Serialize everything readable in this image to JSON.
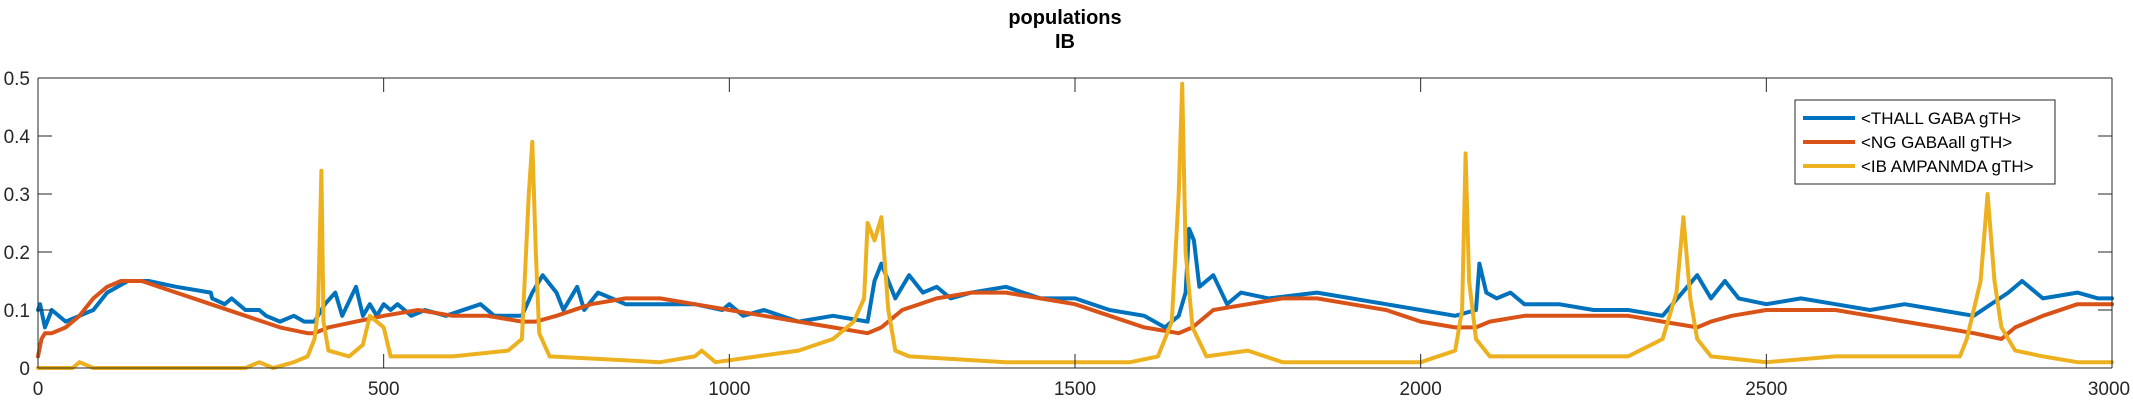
{
  "chart_data": {
    "type": "line",
    "title_lines": [
      "populations",
      "IB"
    ],
    "xlabel": "",
    "ylabel": "",
    "xlim": [
      0,
      3000
    ],
    "ylim": [
      0,
      0.5
    ],
    "x_ticks": [
      0,
      500,
      1000,
      1500,
      2000,
      2500,
      3000
    ],
    "x_tick_labels": [
      "0",
      "500",
      "1000",
      "1500",
      "2000",
      "2500",
      "3000"
    ],
    "y_ticks": [
      0,
      0.1,
      0.2,
      0.3,
      0.4,
      0.5
    ],
    "y_tick_labels": [
      "0",
      "0.1",
      "0.2",
      "0.3",
      "0.4",
      "0.5"
    ],
    "grid": false,
    "legend_position": "top-right",
    "series": [
      {
        "name": "<THALL GABA gTH>",
        "color": "#0072BD",
        "points": [
          [
            0,
            0.1
          ],
          [
            3,
            0.11
          ],
          [
            10,
            0.07
          ],
          [
            20,
            0.1
          ],
          [
            40,
            0.08
          ],
          [
            60,
            0.09
          ],
          [
            80,
            0.1
          ],
          [
            100,
            0.13
          ],
          [
            130,
            0.15
          ],
          [
            160,
            0.15
          ],
          [
            200,
            0.14
          ],
          [
            250,
            0.13
          ],
          [
            252,
            0.12
          ],
          [
            270,
            0.11
          ],
          [
            280,
            0.12
          ],
          [
            300,
            0.1
          ],
          [
            320,
            0.1
          ],
          [
            330,
            0.09
          ],
          [
            350,
            0.08
          ],
          [
            370,
            0.09
          ],
          [
            385,
            0.08
          ],
          [
            400,
            0.08
          ],
          [
            415,
            0.11
          ],
          [
            430,
            0.13
          ],
          [
            440,
            0.09
          ],
          [
            460,
            0.14
          ],
          [
            470,
            0.09
          ],
          [
            480,
            0.11
          ],
          [
            490,
            0.09
          ],
          [
            500,
            0.11
          ],
          [
            510,
            0.1
          ],
          [
            520,
            0.11
          ],
          [
            540,
            0.09
          ],
          [
            560,
            0.1
          ],
          [
            590,
            0.09
          ],
          [
            640,
            0.11
          ],
          [
            660,
            0.09
          ],
          [
            700,
            0.09
          ],
          [
            715,
            0.13
          ],
          [
            730,
            0.16
          ],
          [
            750,
            0.13
          ],
          [
            760,
            0.1
          ],
          [
            780,
            0.14
          ],
          [
            790,
            0.1
          ],
          [
            810,
            0.13
          ],
          [
            830,
            0.12
          ],
          [
            850,
            0.11
          ],
          [
            900,
            0.11
          ],
          [
            950,
            0.11
          ],
          [
            990,
            0.1
          ],
          [
            1000,
            0.11
          ],
          [
            1020,
            0.09
          ],
          [
            1050,
            0.1
          ],
          [
            1100,
            0.08
          ],
          [
            1150,
            0.09
          ],
          [
            1200,
            0.08
          ],
          [
            1210,
            0.15
          ],
          [
            1220,
            0.18
          ],
          [
            1240,
            0.12
          ],
          [
            1260,
            0.16
          ],
          [
            1280,
            0.13
          ],
          [
            1300,
            0.14
          ],
          [
            1320,
            0.12
          ],
          [
            1350,
            0.13
          ],
          [
            1400,
            0.14
          ],
          [
            1450,
            0.12
          ],
          [
            1500,
            0.12
          ],
          [
            1550,
            0.1
          ],
          [
            1600,
            0.09
          ],
          [
            1630,
            0.07
          ],
          [
            1650,
            0.09
          ],
          [
            1660,
            0.13
          ],
          [
            1665,
            0.24
          ],
          [
            1672,
            0.22
          ],
          [
            1680,
            0.14
          ],
          [
            1700,
            0.16
          ],
          [
            1720,
            0.11
          ],
          [
            1740,
            0.13
          ],
          [
            1780,
            0.12
          ],
          [
            1850,
            0.13
          ],
          [
            1900,
            0.12
          ],
          [
            1950,
            0.11
          ],
          [
            2000,
            0.1
          ],
          [
            2050,
            0.09
          ],
          [
            2080,
            0.1
          ],
          [
            2085,
            0.18
          ],
          [
            2095,
            0.13
          ],
          [
            2110,
            0.12
          ],
          [
            2130,
            0.13
          ],
          [
            2150,
            0.11
          ],
          [
            2200,
            0.11
          ],
          [
            2250,
            0.1
          ],
          [
            2300,
            0.1
          ],
          [
            2350,
            0.09
          ],
          [
            2400,
            0.16
          ],
          [
            2420,
            0.12
          ],
          [
            2440,
            0.15
          ],
          [
            2460,
            0.12
          ],
          [
            2500,
            0.11
          ],
          [
            2550,
            0.12
          ],
          [
            2600,
            0.11
          ],
          [
            2650,
            0.1
          ],
          [
            2700,
            0.11
          ],
          [
            2750,
            0.1
          ],
          [
            2800,
            0.09
          ],
          [
            2850,
            0.13
          ],
          [
            2870,
            0.15
          ],
          [
            2900,
            0.12
          ],
          [
            2950,
            0.13
          ],
          [
            2980,
            0.12
          ],
          [
            3000,
            0.12
          ]
        ]
      },
      {
        "name": "<NG GABAall gTH>",
        "color": "#D95319",
        "points": [
          [
            0,
            0.02
          ],
          [
            5,
            0.05
          ],
          [
            10,
            0.06
          ],
          [
            20,
            0.06
          ],
          [
            40,
            0.07
          ],
          [
            60,
            0.09
          ],
          [
            80,
            0.12
          ],
          [
            100,
            0.14
          ],
          [
            120,
            0.15
          ],
          [
            150,
            0.15
          ],
          [
            200,
            0.13
          ],
          [
            250,
            0.11
          ],
          [
            300,
            0.09
          ],
          [
            350,
            0.07
          ],
          [
            390,
            0.06
          ],
          [
            400,
            0.06
          ],
          [
            420,
            0.07
          ],
          [
            460,
            0.08
          ],
          [
            500,
            0.09
          ],
          [
            550,
            0.1
          ],
          [
            600,
            0.09
          ],
          [
            650,
            0.09
          ],
          [
            700,
            0.08
          ],
          [
            720,
            0.08
          ],
          [
            750,
            0.09
          ],
          [
            800,
            0.11
          ],
          [
            850,
            0.12
          ],
          [
            900,
            0.12
          ],
          [
            950,
            0.11
          ],
          [
            1000,
            0.1
          ],
          [
            1050,
            0.09
          ],
          [
            1100,
            0.08
          ],
          [
            1150,
            0.07
          ],
          [
            1200,
            0.06
          ],
          [
            1220,
            0.07
          ],
          [
            1250,
            0.1
          ],
          [
            1300,
            0.12
          ],
          [
            1350,
            0.13
          ],
          [
            1400,
            0.13
          ],
          [
            1450,
            0.12
          ],
          [
            1500,
            0.11
          ],
          [
            1550,
            0.09
          ],
          [
            1600,
            0.07
          ],
          [
            1650,
            0.06
          ],
          [
            1670,
            0.07
          ],
          [
            1700,
            0.1
          ],
          [
            1750,
            0.11
          ],
          [
            1800,
            0.12
          ],
          [
            1850,
            0.12
          ],
          [
            1900,
            0.11
          ],
          [
            1950,
            0.1
          ],
          [
            2000,
            0.08
          ],
          [
            2050,
            0.07
          ],
          [
            2080,
            0.07
          ],
          [
            2100,
            0.08
          ],
          [
            2150,
            0.09
          ],
          [
            2200,
            0.09
          ],
          [
            2250,
            0.09
          ],
          [
            2300,
            0.09
          ],
          [
            2350,
            0.08
          ],
          [
            2400,
            0.07
          ],
          [
            2420,
            0.08
          ],
          [
            2450,
            0.09
          ],
          [
            2500,
            0.1
          ],
          [
            2550,
            0.1
          ],
          [
            2600,
            0.1
          ],
          [
            2650,
            0.09
          ],
          [
            2700,
            0.08
          ],
          [
            2750,
            0.07
          ],
          [
            2800,
            0.06
          ],
          [
            2840,
            0.05
          ],
          [
            2860,
            0.07
          ],
          [
            2900,
            0.09
          ],
          [
            2950,
            0.11
          ],
          [
            3000,
            0.11
          ]
        ]
      },
      {
        "name": "<IB AMPANMDA gTH>",
        "color": "#EDB120",
        "points": [
          [
            0,
            0
          ],
          [
            50,
            0
          ],
          [
            60,
            0.01
          ],
          [
            80,
            0
          ],
          [
            300,
            0
          ],
          [
            320,
            0.01
          ],
          [
            340,
            0
          ],
          [
            370,
            0.01
          ],
          [
            390,
            0.02
          ],
          [
            400,
            0.05
          ],
          [
            405,
            0.1
          ],
          [
            410,
            0.34
          ],
          [
            413,
            0.08
          ],
          [
            420,
            0.03
          ],
          [
            450,
            0.02
          ],
          [
            470,
            0.04
          ],
          [
            480,
            0.09
          ],
          [
            500,
            0.07
          ],
          [
            510,
            0.02
          ],
          [
            600,
            0.02
          ],
          [
            680,
            0.03
          ],
          [
            700,
            0.05
          ],
          [
            710,
            0.3
          ],
          [
            715,
            0.39
          ],
          [
            720,
            0.2
          ],
          [
            725,
            0.06
          ],
          [
            740,
            0.02
          ],
          [
            900,
            0.01
          ],
          [
            950,
            0.02
          ],
          [
            960,
            0.03
          ],
          [
            980,
            0.01
          ],
          [
            1100,
            0.03
          ],
          [
            1150,
            0.05
          ],
          [
            1180,
            0.08
          ],
          [
            1195,
            0.12
          ],
          [
            1200,
            0.25
          ],
          [
            1210,
            0.22
          ],
          [
            1220,
            0.26
          ],
          [
            1230,
            0.1
          ],
          [
            1240,
            0.03
          ],
          [
            1260,
            0.02
          ],
          [
            1400,
            0.01
          ],
          [
            1580,
            0.01
          ],
          [
            1620,
            0.02
          ],
          [
            1640,
            0.08
          ],
          [
            1650,
            0.3
          ],
          [
            1655,
            0.49
          ],
          [
            1660,
            0.2
          ],
          [
            1670,
            0.07
          ],
          [
            1690,
            0.02
          ],
          [
            1750,
            0.03
          ],
          [
            1800,
            0.01
          ],
          [
            1900,
            0.01
          ],
          [
            2000,
            0.01
          ],
          [
            2050,
            0.03
          ],
          [
            2060,
            0.1
          ],
          [
            2065,
            0.37
          ],
          [
            2070,
            0.15
          ],
          [
            2080,
            0.05
          ],
          [
            2100,
            0.02
          ],
          [
            2200,
            0.02
          ],
          [
            2300,
            0.02
          ],
          [
            2350,
            0.05
          ],
          [
            2370,
            0.13
          ],
          [
            2380,
            0.26
          ],
          [
            2390,
            0.12
          ],
          [
            2400,
            0.05
          ],
          [
            2420,
            0.02
          ],
          [
            2500,
            0.01
          ],
          [
            2600,
            0.02
          ],
          [
            2700,
            0.02
          ],
          [
            2780,
            0.02
          ],
          [
            2790,
            0.05
          ],
          [
            2800,
            0.1
          ],
          [
            2810,
            0.15
          ],
          [
            2820,
            0.3
          ],
          [
            2830,
            0.15
          ],
          [
            2840,
            0.07
          ],
          [
            2860,
            0.03
          ],
          [
            2900,
            0.02
          ],
          [
            2950,
            0.01
          ],
          [
            3000,
            0.01
          ]
        ]
      }
    ]
  }
}
